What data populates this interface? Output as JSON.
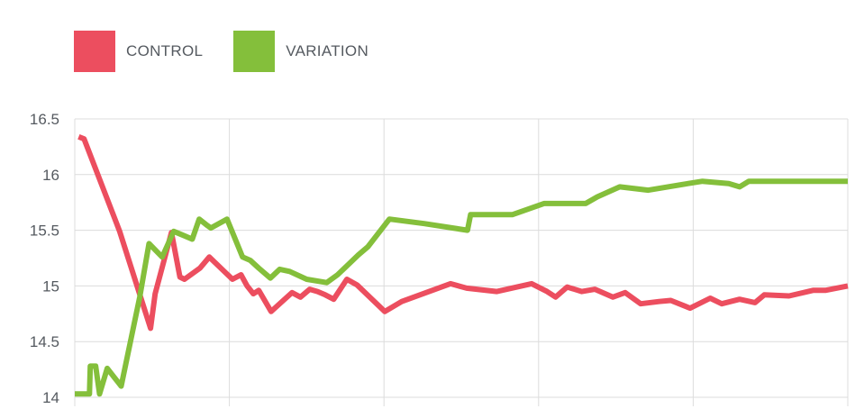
{
  "legend": {
    "items": [
      {
        "label": "CONTROL",
        "color": "#ec4e5f"
      },
      {
        "label": "VARIATION",
        "color": "#84bf3b"
      }
    ]
  },
  "chart_data": {
    "type": "line",
    "ylim": [
      14,
      16.5
    ],
    "xlim": [
      0,
      100
    ],
    "yticks": [
      "16.5",
      "16",
      "15.5",
      "15",
      "14.5",
      "14"
    ],
    "grid": true,
    "legend_position": "top-left",
    "series": [
      {
        "name": "CONTROL",
        "color": "#ec4e5f",
        "x": [
          0.5,
          1.2,
          5.8,
          9.8,
          10.4,
          12.5,
          13.6,
          14.2,
          16.2,
          17.4,
          20.4,
          21.5,
          22.3,
          23.1,
          23.8,
          25.4,
          26.5,
          28.1,
          29.2,
          30.4,
          31.4,
          32.4,
          33.5,
          35.2,
          36.5,
          40.1,
          42.3,
          48.6,
          50.7,
          54.6,
          59.1,
          61.1,
          62.2,
          63.7,
          65.6,
          67.3,
          69.6,
          71.2,
          73.2,
          75.6,
          77.1,
          79.6,
          82.2,
          83.7,
          86.0,
          88.0,
          89.2,
          92.4,
          95.5,
          97.1,
          100.0
        ],
        "y": [
          16.34,
          16.32,
          15.49,
          14.62,
          14.93,
          15.48,
          15.08,
          15.06,
          15.16,
          15.26,
          15.06,
          15.1,
          15.0,
          14.93,
          14.96,
          14.77,
          14.84,
          14.94,
          14.9,
          14.97,
          14.95,
          14.92,
          14.88,
          15.06,
          15.01,
          14.77,
          14.86,
          15.02,
          14.98,
          14.95,
          15.02,
          14.95,
          14.9,
          14.99,
          14.95,
          14.97,
          14.9,
          14.94,
          14.84,
          14.86,
          14.87,
          14.8,
          14.89,
          14.84,
          14.88,
          14.85,
          14.92,
          14.91,
          14.96,
          14.96,
          15.0
        ]
      },
      {
        "name": "VARIATION",
        "color": "#84bf3b",
        "x": [
          0.0,
          1.9,
          2.0,
          2.7,
          3.2,
          4.2,
          6.0,
          7.2,
          8.4,
          9.6,
          11.3,
          12.8,
          14.2,
          15.2,
          16.1,
          17.0,
          17.6,
          19.7,
          21.7,
          22.7,
          23.8,
          25.3,
          26.5,
          27.8,
          30.0,
          32.6,
          34.0,
          36.7,
          37.9,
          40.7,
          45.2,
          50.8,
          51.2,
          56.6,
          60.7,
          66.1,
          67.6,
          70.5,
          74.2,
          78.5,
          81.2,
          84.6,
          86.0,
          87.2,
          90.2,
          91.8,
          94.5,
          100.0
        ],
        "y": [
          14.03,
          14.03,
          14.28,
          14.28,
          14.03,
          14.26,
          14.1,
          14.5,
          14.9,
          15.38,
          15.26,
          15.49,
          15.45,
          15.42,
          15.6,
          15.55,
          15.52,
          15.6,
          15.26,
          15.23,
          15.16,
          15.07,
          15.15,
          15.13,
          15.06,
          15.03,
          15.1,
          15.28,
          15.35,
          15.6,
          15.56,
          15.5,
          15.64,
          15.64,
          15.74,
          15.74,
          15.8,
          15.89,
          15.86,
          15.91,
          15.94,
          15.92,
          15.89,
          15.94,
          15.94,
          15.94,
          15.94,
          15.94
        ]
      }
    ]
  }
}
